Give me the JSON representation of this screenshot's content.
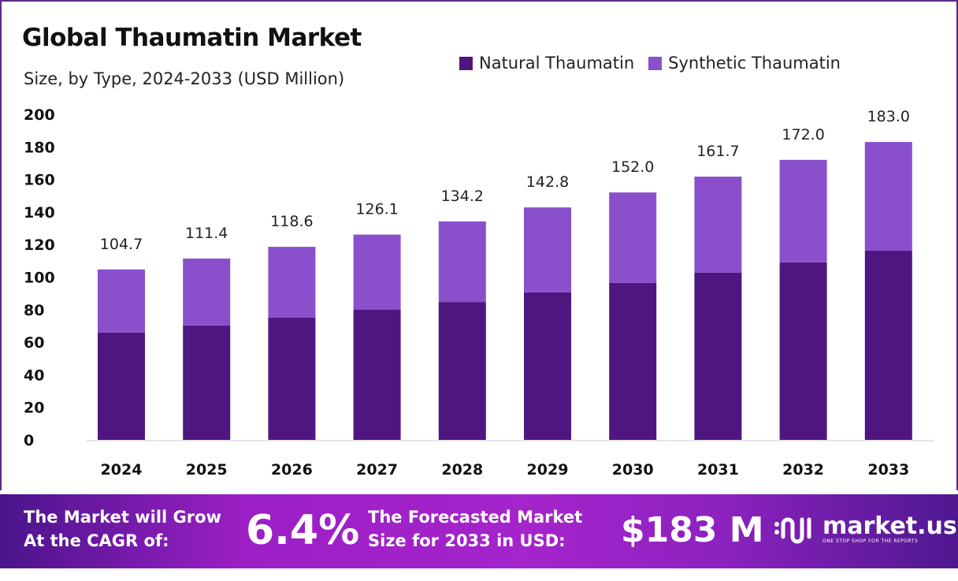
{
  "chart_data": {
    "type": "bar",
    "stacked": true,
    "title": "Global Thaumatin Market",
    "subtitle": "Size, by Type, 2024-2033 (USD Million)",
    "categories": [
      "2024",
      "2025",
      "2026",
      "2027",
      "2028",
      "2029",
      "2030",
      "2031",
      "2032",
      "2033"
    ],
    "series": [
      {
        "name": "Natural Thaumatin",
        "color": "#4f1680",
        "values": [
          65.9,
          70.3,
          75.1,
          79.9,
          84.7,
          90.6,
          96.4,
          102.7,
          109.0,
          116.2
        ]
      },
      {
        "name": "Synthetic Thaumatin",
        "color": "#8a4fcb",
        "values": [
          38.8,
          41.1,
          43.5,
          46.2,
          49.5,
          52.2,
          55.6,
          59.0,
          63.0,
          66.8
        ]
      }
    ],
    "totals": [
      "104.7",
      "111.4",
      "118.6",
      "126.1",
      "134.2",
      "142.8",
      "152.0",
      "161.7",
      "172.0",
      "183.0"
    ],
    "yticks": [
      "0",
      "20",
      "40",
      "60",
      "80",
      "100",
      "120",
      "140",
      "160",
      "180",
      "200"
    ],
    "ylim": [
      0,
      200
    ],
    "grid": false,
    "legend": "top-right"
  },
  "banner": {
    "cagr_label_1": "The Market will Grow",
    "cagr_label_2": "At the CAGR of:",
    "cagr_value": "6.4%",
    "forecast_label_1": "The Forecasted Market",
    "forecast_label_2": "Size for 2033 in USD:",
    "forecast_value": "$183 M",
    "logo_text": "market.us",
    "logo_tagline": "ONE STOP SHOP FOR THE REPORTS"
  }
}
